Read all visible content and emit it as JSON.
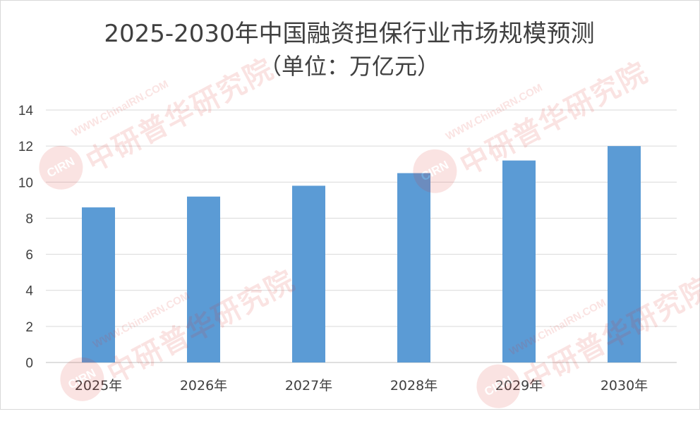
{
  "chart_data": {
    "type": "bar",
    "title": "2025-2030年中国融资担保行业市场规模预测",
    "subtitle": "（单位：万亿元）",
    "categories": [
      "2025年",
      "2026年",
      "2027年",
      "2028年",
      "2029年",
      "2030年"
    ],
    "values": [
      8.6,
      9.2,
      9.8,
      10.5,
      11.2,
      12.0
    ],
    "ylim": [
      0,
      14
    ],
    "yticks": [
      0,
      2,
      4,
      6,
      8,
      10,
      12,
      14
    ],
    "grid": true,
    "legend": "none",
    "bar_color": "#5b9bd5"
  },
  "watermark": {
    "logo_text": "CIRN",
    "url": "WWW.ChinaIRN.COM",
    "name": "中研普华研究院"
  }
}
